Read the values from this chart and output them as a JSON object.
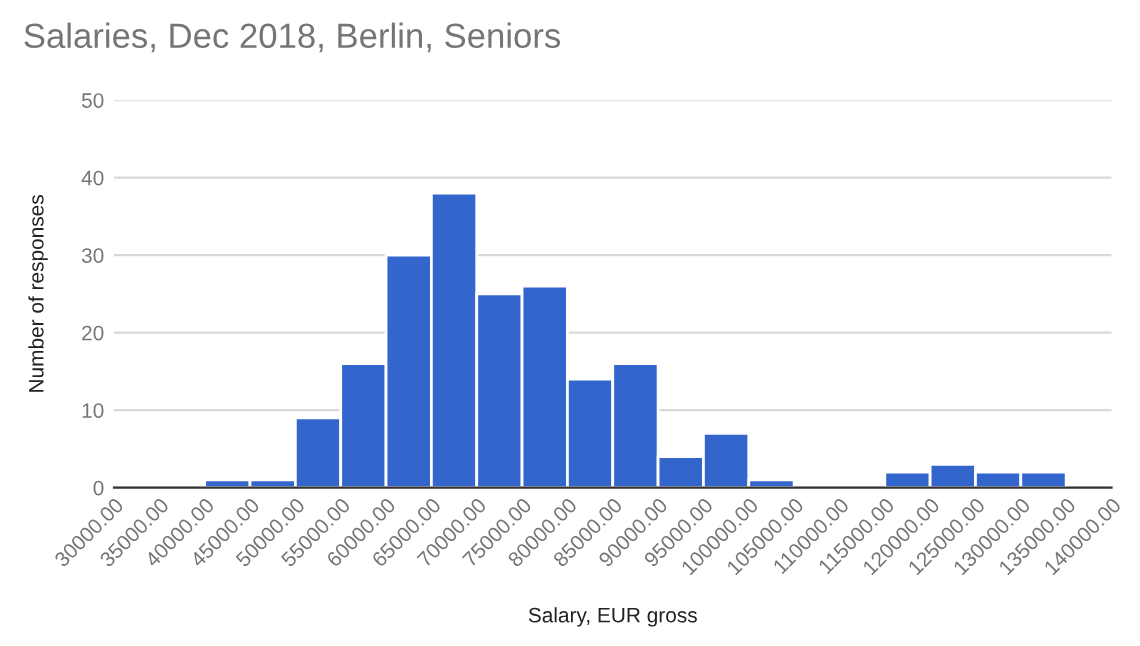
{
  "chart_data": {
    "type": "histogram",
    "title": "Salaries, Dec 2018, Berlin, Seniors",
    "xlabel": "Salary, EUR gross",
    "ylabel": "Number of responses",
    "bins": [
      30000,
      35000,
      40000,
      45000,
      50000,
      55000,
      60000,
      65000,
      70000,
      75000,
      80000,
      85000,
      90000,
      95000,
      100000,
      105000,
      110000,
      115000,
      120000,
      125000,
      130000,
      135000,
      140000
    ],
    "values": [
      0,
      0,
      1,
      1,
      9,
      16,
      30,
      38,
      25,
      26,
      14,
      16,
      4,
      7,
      1,
      0,
      0,
      2,
      3,
      2,
      2,
      0
    ],
    "color": "#3366cc",
    "xlim": [
      30000,
      140000
    ],
    "xticks": [
      {
        "value": 30000,
        "label": "30000.00"
      },
      {
        "value": 35000,
        "label": "35000.00"
      },
      {
        "value": 40000,
        "label": "40000.00"
      },
      {
        "value": 45000,
        "label": "45000.00"
      },
      {
        "value": 50000,
        "label": "50000.00"
      },
      {
        "value": 55000,
        "label": "55000.00"
      },
      {
        "value": 60000,
        "label": "60000.00"
      },
      {
        "value": 65000,
        "label": "65000.00"
      },
      {
        "value": 70000,
        "label": "70000.00"
      },
      {
        "value": 75000,
        "label": "75000.00"
      },
      {
        "value": 80000,
        "label": "80000.00"
      },
      {
        "value": 85000,
        "label": "85000.00"
      },
      {
        "value": 90000,
        "label": "90000.00"
      },
      {
        "value": 95000,
        "label": "95000.00"
      },
      {
        "value": 100000,
        "label": "100000.00"
      },
      {
        "value": 105000,
        "label": "105000.00"
      },
      {
        "value": 110000,
        "label": "110000.00"
      },
      {
        "value": 115000,
        "label": "115000.00"
      },
      {
        "value": 120000,
        "label": "120000.00"
      },
      {
        "value": 125000,
        "label": "125000.00"
      },
      {
        "value": 130000,
        "label": "130000.00"
      },
      {
        "value": 135000,
        "label": "135000.00"
      },
      {
        "value": 140000,
        "label": "140000.00"
      }
    ],
    "ylim": [
      0,
      50
    ],
    "yticks": [
      0,
      10,
      20,
      30,
      40,
      50
    ],
    "grid": "y"
  }
}
